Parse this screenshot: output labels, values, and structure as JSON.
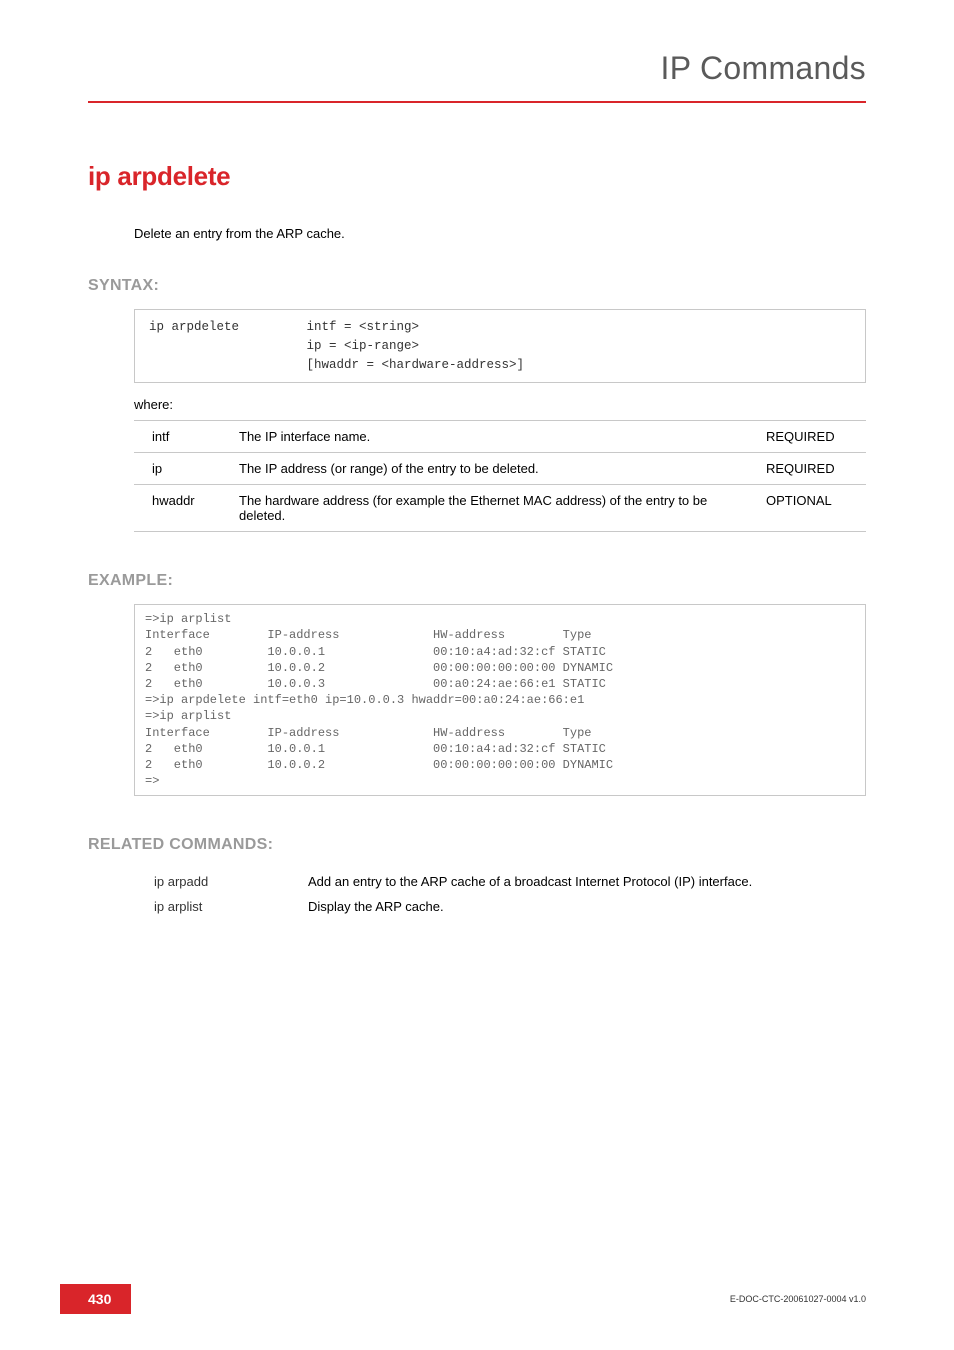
{
  "header": {
    "title": "IP Commands"
  },
  "command": {
    "name": "ip arpdelete",
    "description": "Delete an entry from the ARP cache."
  },
  "syntax": {
    "heading": "SYNTAX:",
    "lines": "ip arpdelete         intf = <string>\n                     ip = <ip-range>\n                     [hwaddr = <hardware-address>]",
    "where": "where:",
    "params": [
      {
        "name": "intf",
        "desc": "The IP interface name.",
        "req": "REQUIRED"
      },
      {
        "name": "ip",
        "desc": "The IP address (or range) of the entry to be deleted.",
        "req": "REQUIRED"
      },
      {
        "name": "hwaddr",
        "desc": "The hardware address (for example the Ethernet MAC address) of the entry to be deleted.",
        "req": "OPTIONAL"
      }
    ]
  },
  "example": {
    "heading": "EXAMPLE:",
    "text": "=>ip arplist\nInterface        IP-address             HW-address        Type\n2   eth0         10.0.0.1               00:10:a4:ad:32:cf STATIC\n2   eth0         10.0.0.2               00:00:00:00:00:00 DYNAMIC\n2   eth0         10.0.0.3               00:a0:24:ae:66:e1 STATIC\n=>ip arpdelete intf=eth0 ip=10.0.0.3 hwaddr=00:a0:24:ae:66:e1\n=>ip arplist\nInterface        IP-address             HW-address        Type\n2   eth0         10.0.0.1               00:10:a4:ad:32:cf STATIC\n2   eth0         10.0.0.2               00:00:00:00:00:00 DYNAMIC\n=>"
  },
  "related": {
    "heading": "RELATED COMMANDS:",
    "items": [
      {
        "cmd": "ip arpadd",
        "desc": "Add an entry to the ARP cache of a broadcast Internet Protocol (IP) interface."
      },
      {
        "cmd": "ip arplist",
        "desc": "Display the ARP cache."
      }
    ]
  },
  "footer": {
    "page": "430",
    "docid": "E-DOC-CTC-20061027-0004 v1.0"
  },
  "colors": {
    "accent": "#d9252a",
    "grayHeading": "#9a9a9a",
    "border": "#c8c8c8"
  }
}
